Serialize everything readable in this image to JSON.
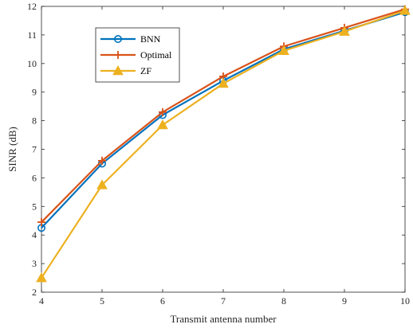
{
  "chart_data": {
    "type": "line",
    "title": "",
    "xlabel": "Transmit antenna number",
    "ylabel": "SINR (dB)",
    "xlim": [
      4,
      10
    ],
    "ylim": [
      2,
      12
    ],
    "x": [
      4,
      5,
      6,
      7,
      8,
      9,
      10
    ],
    "xticks": [
      "4",
      "5",
      "6",
      "7",
      "8",
      "9",
      "10"
    ],
    "yticks": [
      "2",
      "3",
      "4",
      "5",
      "6",
      "7",
      "8",
      "9",
      "10",
      "11",
      "12"
    ],
    "grid": false,
    "legend_position": "top-left",
    "series": [
      {
        "name": "BNN",
        "values": [
          4.25,
          6.5,
          8.2,
          9.4,
          10.5,
          11.15,
          11.8
        ],
        "color": "#0072BD",
        "marker": "circle"
      },
      {
        "name": "Optimal",
        "values": [
          4.45,
          6.6,
          8.3,
          9.55,
          10.6,
          11.25,
          11.9
        ],
        "color": "#D95319",
        "marker": "plus"
      },
      {
        "name": "ZF",
        "values": [
          2.5,
          5.75,
          7.85,
          9.3,
          10.45,
          11.12,
          11.85
        ],
        "color": "#EDB120",
        "marker": "triangle"
      }
    ]
  }
}
